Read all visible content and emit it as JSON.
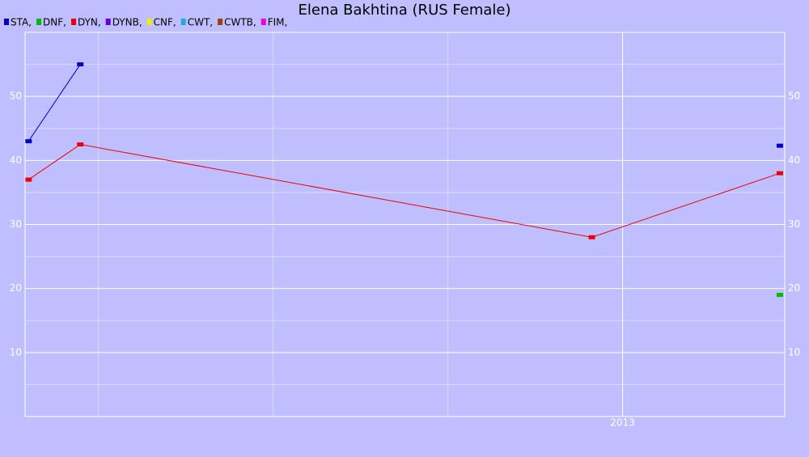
{
  "chart_data": {
    "type": "line",
    "title": "Elena Bakhtina (RUS Female)",
    "x": [
      2012.15,
      2012.224,
      2012.956,
      2013.225
    ],
    "xlim": [
      2012.145,
      2013.232
    ],
    "xticks": [
      {
        "value": 2013,
        "label": "2013"
      }
    ],
    "x_minor_grid": [
      2012.25,
      2012.5,
      2012.75
    ],
    "ylim": [
      0,
      60
    ],
    "yticks": [
      10,
      20,
      30,
      40,
      50
    ],
    "y_minor_grid": [
      5,
      15,
      25,
      35,
      45,
      55
    ],
    "grid": true,
    "series": [
      {
        "name": "STA,",
        "color": "#0000cc",
        "values": [
          43,
          55,
          null,
          42.3
        ]
      },
      {
        "name": "DNF,",
        "color": "#00bb00",
        "values": [
          null,
          null,
          null,
          19
        ]
      },
      {
        "name": "DYN,",
        "color": "#ee0000",
        "values": [
          37,
          42.5,
          28,
          38
        ]
      },
      {
        "name": "DYNB,",
        "color": "#6600dd",
        "values": [
          null,
          null,
          null,
          null
        ]
      },
      {
        "name": "CNF,",
        "color": "#eeee00",
        "values": [
          null,
          null,
          null,
          null
        ]
      },
      {
        "name": "CWT,",
        "color": "#22aadd",
        "values": [
          null,
          null,
          null,
          null
        ]
      },
      {
        "name": "CWTB,",
        "color": "#994400",
        "values": [
          null,
          null,
          null,
          null
        ]
      },
      {
        "name": "FIM,",
        "color": "#ee00ee",
        "values": [
          null,
          null,
          null,
          null
        ]
      }
    ]
  }
}
